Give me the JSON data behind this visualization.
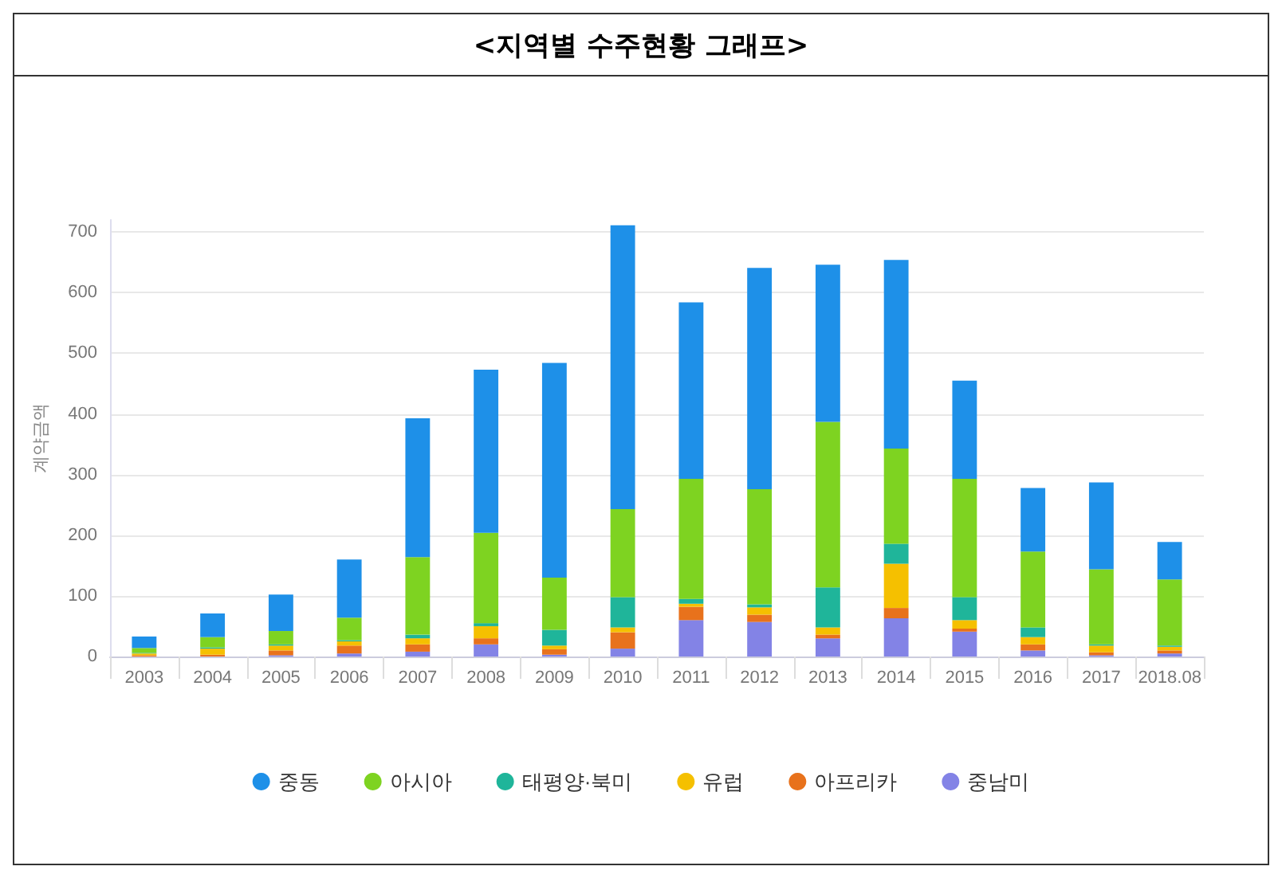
{
  "chart_data": {
    "type": "bar",
    "title": "<지역별 수주현황 그래프>",
    "ylabel": "계약금액",
    "categories": [
      "2003",
      "2004",
      "2005",
      "2006",
      "2007",
      "2008",
      "2009",
      "2010",
      "2011",
      "2012",
      "2013",
      "2014",
      "2015",
      "2016",
      "2017",
      "2018.08"
    ],
    "stacked": true,
    "series": [
      {
        "name": "중남미",
        "color": "#8383e6",
        "values": [
          0,
          0,
          2,
          5,
          8,
          20,
          3,
          13,
          60,
          57,
          30,
          63,
          41,
          10,
          2,
          5
        ]
      },
      {
        "name": "아프리카",
        "color": "#e8721c",
        "values": [
          2,
          3,
          8,
          13,
          12,
          10,
          9,
          27,
          22,
          12,
          6,
          17,
          5,
          10,
          5,
          5
        ]
      },
      {
        "name": "유럽",
        "color": "#f5c000",
        "values": [
          3,
          10,
          8,
          7,
          10,
          20,
          6,
          8,
          5,
          12,
          12,
          73,
          14,
          12,
          11,
          6
        ]
      },
      {
        "name": "태평양·북미",
        "color": "#1fb59a",
        "values": [
          1,
          2,
          2,
          2,
          6,
          5,
          26,
          50,
          8,
          5,
          66,
          33,
          38,
          16,
          2,
          2
        ]
      },
      {
        "name": "아시아",
        "color": "#7ed321",
        "values": [
          8,
          17,
          22,
          37,
          128,
          149,
          86,
          145,
          198,
          190,
          273,
          157,
          195,
          125,
          124,
          109
        ]
      },
      {
        "name": "중동",
        "color": "#1e90e8",
        "values": [
          19,
          39,
          60,
          96,
          229,
          269,
          354,
          468,
          291,
          365,
          259,
          311,
          162,
          105,
          143,
          62
        ]
      }
    ],
    "ylim": [
      0,
      720
    ],
    "yticks": [
      0,
      100,
      200,
      300,
      400,
      500,
      600,
      700
    ],
    "grid": "y",
    "legend": "bottom"
  }
}
